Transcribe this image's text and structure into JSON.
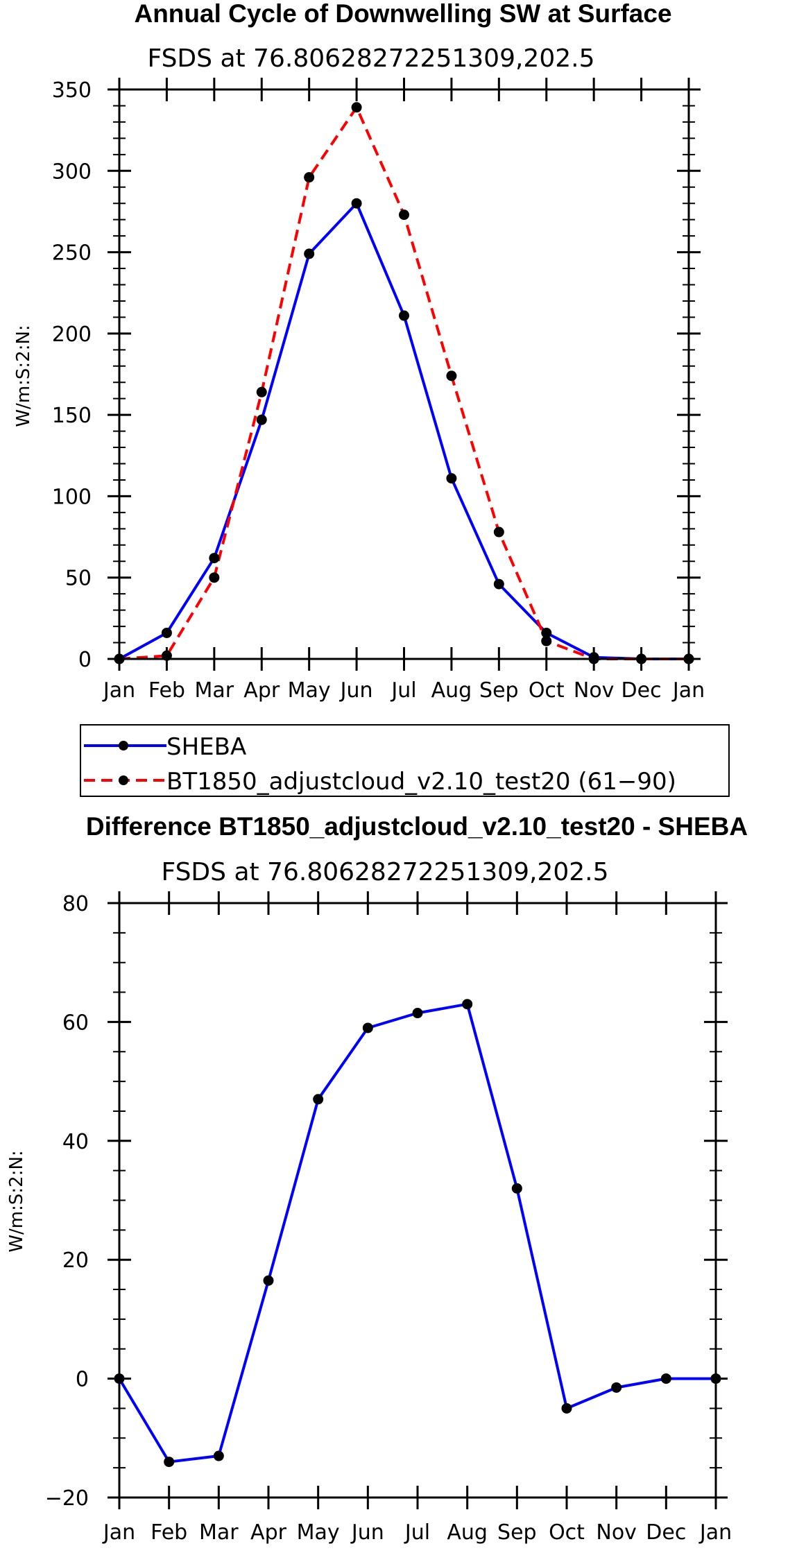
{
  "chart_data": [
    {
      "type": "line",
      "title": "Annual Cycle of Downwelling SW at Surface",
      "subtitle": "FSDS at 76.80628272251309,202.5",
      "xlabel": "",
      "ylabel": "W/m:S:2:N:",
      "categories": [
        "Jan",
        "Feb",
        "Mar",
        "Apr",
        "May",
        "Jun",
        "Jul",
        "Aug",
        "Sep",
        "Oct",
        "Nov",
        "Dec",
        "Jan"
      ],
      "ylim": [
        0,
        350
      ],
      "yticks": [
        0,
        50,
        100,
        150,
        200,
        250,
        300,
        350
      ],
      "ytick_labels": [
        "0",
        "50",
        "100",
        "150",
        "200",
        "250",
        "300",
        "350"
      ],
      "series": [
        {
          "name": "SHEBA",
          "color": "#0000ff",
          "dash": "solid",
          "values": [
            0,
            16,
            62,
            147,
            249,
            280,
            211,
            111,
            46,
            16,
            1,
            0,
            0
          ]
        },
        {
          "name": "BT1850_adjustcloud_v2.10_test20 (61−90)",
          "color": "#ff0000",
          "dash": "dashed",
          "values": [
            0,
            2,
            50,
            164,
            296,
            339,
            273,
            174,
            78,
            11,
            0,
            0,
            0
          ]
        }
      ],
      "legend": {
        "position": "below",
        "entries": [
          "SHEBA",
          "BT1850_adjustcloud_v2.10_test20 (61−90)"
        ]
      }
    },
    {
      "type": "line",
      "title": "Difference BT1850_adjustcloud_v2.10_test20 - SHEBA",
      "subtitle": "FSDS at 76.80628272251309,202.5",
      "xlabel": "",
      "ylabel": "W/m:S:2:N:",
      "categories": [
        "Jan",
        "Feb",
        "Mar",
        "Apr",
        "May",
        "Jun",
        "Jul",
        "Aug",
        "Sep",
        "Oct",
        "Nov",
        "Dec",
        "Jan"
      ],
      "ylim": [
        -20,
        80
      ],
      "yticks": [
        -20,
        0,
        20,
        40,
        60,
        80
      ],
      "ytick_labels": [
        "−20",
        "0",
        "20",
        "40",
        "60",
        "80"
      ],
      "series": [
        {
          "name": "Difference",
          "color": "#0000ff",
          "dash": "solid",
          "values": [
            0,
            -14,
            -13,
            16.5,
            47,
            59,
            61.5,
            63,
            32,
            -5,
            -1.5,
            0,
            0
          ]
        }
      ]
    }
  ]
}
